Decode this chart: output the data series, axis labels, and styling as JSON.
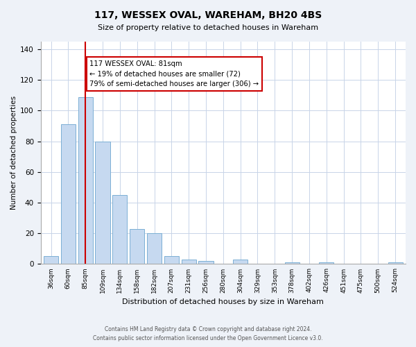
{
  "title": "117, WESSEX OVAL, WAREHAM, BH20 4BS",
  "subtitle": "Size of property relative to detached houses in Wareham",
  "xlabel": "Distribution of detached houses by size in Wareham",
  "ylabel": "Number of detached properties",
  "bar_labels": [
    "36sqm",
    "60sqm",
    "85sqm",
    "109sqm",
    "134sqm",
    "158sqm",
    "182sqm",
    "207sqm",
    "231sqm",
    "256sqm",
    "280sqm",
    "304sqm",
    "329sqm",
    "353sqm",
    "378sqm",
    "402sqm",
    "426sqm",
    "451sqm",
    "475sqm",
    "500sqm",
    "524sqm"
  ],
  "bar_values": [
    5,
    91,
    109,
    80,
    45,
    23,
    20,
    5,
    3,
    2,
    0,
    3,
    0,
    0,
    1,
    0,
    1,
    0,
    0,
    0,
    1
  ],
  "bar_color": "#c6d9f0",
  "bar_edge_color": "#7bafd4",
  "ylim": [
    0,
    145
  ],
  "yticks": [
    0,
    20,
    40,
    60,
    80,
    100,
    120,
    140
  ],
  "vline_x_index": 2,
  "vline_color": "#cc0000",
  "annotation_text": "117 WESSEX OVAL: 81sqm\n← 19% of detached houses are smaller (72)\n79% of semi-detached houses are larger (306) →",
  "footer_line1": "Contains HM Land Registry data © Crown copyright and database right 2024.",
  "footer_line2": "Contains public sector information licensed under the Open Government Licence v3.0.",
  "background_color": "#eef2f8",
  "plot_background_color": "#ffffff",
  "grid_color": "#c8d4e8"
}
